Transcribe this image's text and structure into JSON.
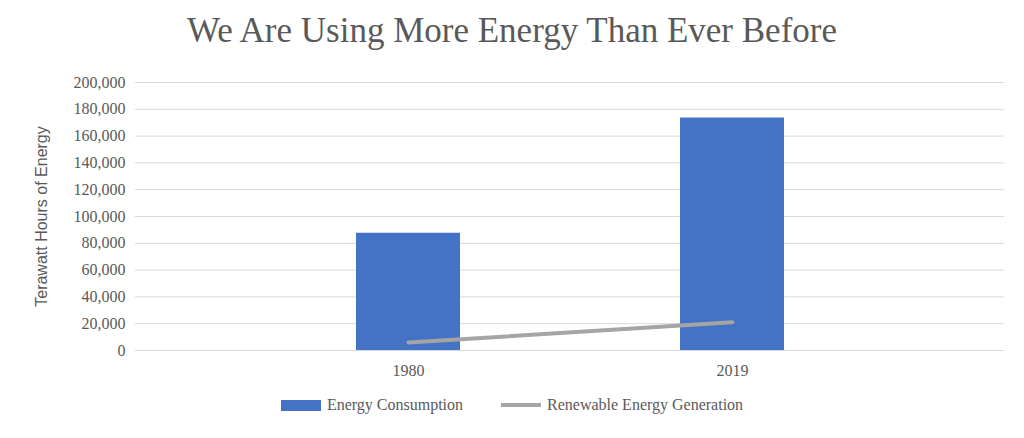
{
  "chart_data": {
    "type": "bar",
    "title": "We Are Using More Energy Than Ever Before",
    "y_label": "Terawatt Hours of Energy",
    "categories": [
      "1980",
      "2019"
    ],
    "series": [
      {
        "name": "Energy Consumption",
        "type": "bar",
        "color": "#4472c4",
        "values": [
          87500,
          173500
        ]
      },
      {
        "name": "Renewable Energy Generation",
        "type": "line",
        "color": "#a5a5a5",
        "values": [
          6000,
          21000
        ]
      }
    ],
    "ylim": [
      0,
      200000
    ],
    "yticks": [
      0,
      {
        "value": 20000,
        "label": "20,000"
      },
      {
        "value": 40000,
        "label": "40,000"
      },
      {
        "value": 60000,
        "label": "60,000"
      },
      {
        "value": 80000,
        "label": "80,000"
      },
      {
        "value": 100000,
        "label": "100,000"
      },
      {
        "value": 120000,
        "label": "120,000"
      },
      {
        "value": 140000,
        "label": "140,000"
      },
      {
        "value": 160000,
        "label": "160,000"
      },
      {
        "value": 180000,
        "label": "180,000"
      },
      {
        "value": 200000,
        "label": "200,000"
      }
    ],
    "grid": true,
    "legend": "bottom"
  }
}
